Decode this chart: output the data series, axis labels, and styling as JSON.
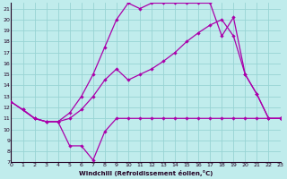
{
  "bg_color": "#c0ecec",
  "grid_color": "#98d4d4",
  "line_color": "#aa00aa",
  "xlabel": "Windchill (Refroidissement éolien,°C)",
  "xlim": [
    0,
    23
  ],
  "ylim": [
    7,
    21.5
  ],
  "yticks": [
    7,
    8,
    9,
    10,
    11,
    12,
    13,
    14,
    15,
    16,
    17,
    18,
    19,
    20,
    21
  ],
  "xticks": [
    0,
    1,
    2,
    3,
    4,
    5,
    6,
    7,
    8,
    9,
    10,
    11,
    12,
    13,
    14,
    15,
    16,
    17,
    18,
    19,
    20,
    21,
    22,
    23
  ],
  "s1_x": [
    1,
    2,
    3,
    4,
    5,
    6,
    7,
    8,
    9,
    10,
    11,
    12,
    13,
    14,
    15,
    16,
    17,
    18,
    19,
    20,
    21,
    22,
    23
  ],
  "s1_y": [
    11.8,
    11.0,
    10.7,
    10.7,
    8.5,
    8.5,
    7.2,
    9.8,
    11.0,
    11.0,
    11.0,
    11.0,
    11.0,
    11.0,
    11.0,
    11.0,
    11.0,
    11.0,
    11.0,
    11.0,
    11.0,
    11.0,
    11.0
  ],
  "s2_x": [
    0,
    1,
    2,
    3,
    4,
    5,
    6,
    7,
    8,
    9,
    10,
    11,
    12,
    13,
    14,
    15,
    16,
    17,
    18,
    19,
    20,
    21,
    22,
    23
  ],
  "s2_y": [
    12.5,
    11.8,
    11.0,
    10.7,
    10.7,
    11.5,
    13.0,
    15.0,
    17.5,
    20.0,
    21.5,
    21.0,
    21.5,
    21.5,
    21.5,
    21.5,
    21.5,
    21.5,
    18.5,
    20.2,
    15.0,
    13.2,
    11.0,
    11.0
  ],
  "s3_x": [
    0,
    2,
    3,
    4,
    5,
    6,
    7,
    8,
    9,
    10,
    11,
    12,
    13,
    14,
    15,
    16,
    17,
    18,
    19,
    20,
    21,
    22,
    23
  ],
  "s3_y": [
    12.5,
    11.0,
    10.7,
    10.7,
    11.0,
    11.8,
    13.0,
    14.5,
    15.5,
    14.5,
    15.0,
    15.5,
    16.2,
    17.0,
    18.0,
    18.8,
    19.5,
    20.0,
    18.5,
    15.0,
    13.2,
    11.0,
    11.0
  ]
}
